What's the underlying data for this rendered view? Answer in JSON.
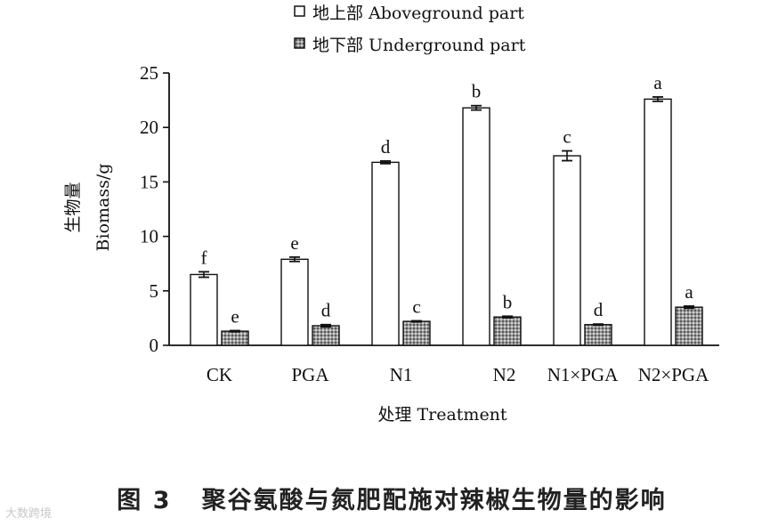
{
  "chart_data": {
    "type": "bar",
    "categories": [
      "CK",
      "PGA",
      "N1",
      "N2",
      "N1×PGA",
      "N2×PGA"
    ],
    "series": [
      {
        "name": "地上部 Aboveground part",
        "values": [
          6.5,
          7.9,
          16.8,
          21.8,
          17.4,
          22.6
        ],
        "errors": [
          0.25,
          0.2,
          0.12,
          0.2,
          0.45,
          0.2
        ],
        "letters": [
          "f",
          "e",
          "d",
          "b",
          "c",
          "a"
        ],
        "color": "#ffffff"
      },
      {
        "name": "地下部 Underground part",
        "values": [
          1.3,
          1.8,
          2.2,
          2.6,
          1.9,
          3.5
        ],
        "errors": [
          0.05,
          0.1,
          0.05,
          0.07,
          0.05,
          0.1
        ],
        "letters": [
          "e",
          "d",
          "c",
          "b",
          "d",
          "a"
        ],
        "color": "#8a8a8a"
      }
    ],
    "ylim": [
      0,
      25
    ],
    "yticks": [
      0,
      5,
      10,
      15,
      20,
      25
    ],
    "ylabel_cn": "生物量",
    "ylabel_en": "Biomass/g",
    "xlabel": "处理 Treatment",
    "legend_position": "top-center"
  },
  "caption": {
    "figure_no": "图 3",
    "title": "聚谷氨酸与氮肥配施对辣椒生物量的影响"
  },
  "watermark": "大数跨境"
}
